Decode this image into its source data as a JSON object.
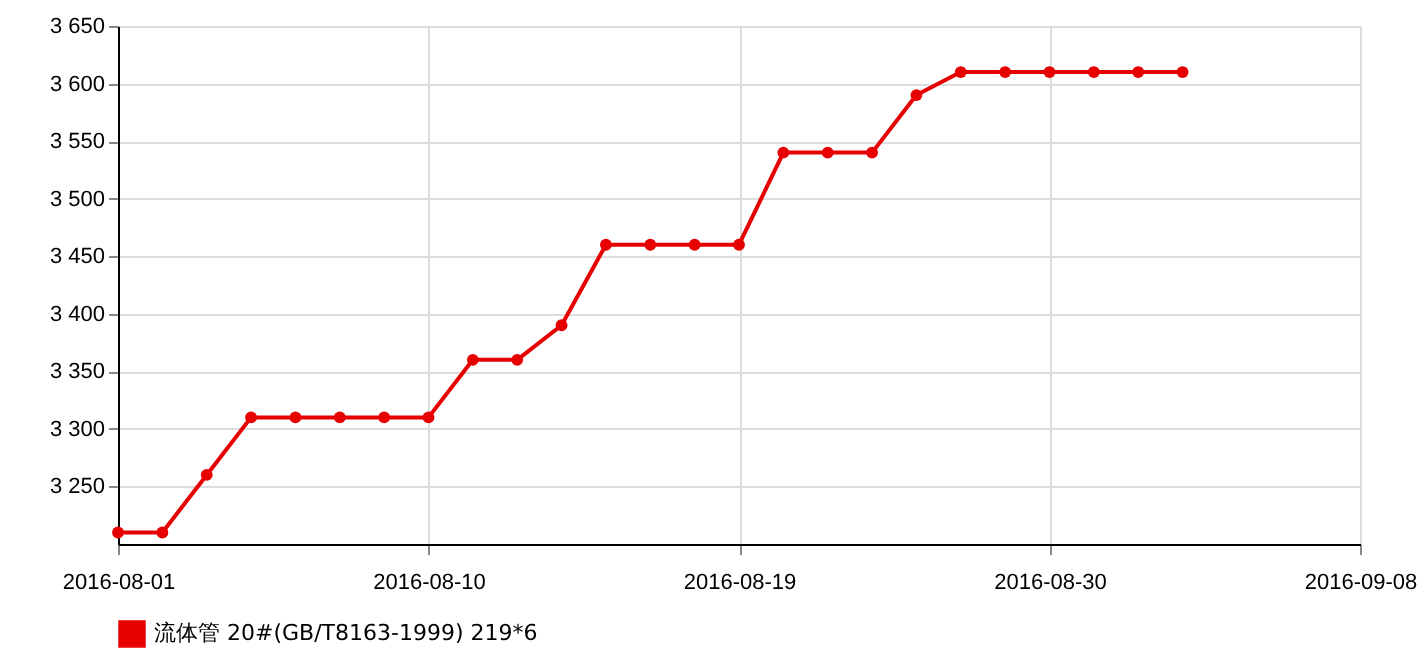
{
  "chart_data": {
    "type": "line",
    "categories": [
      "2016-08-01",
      null,
      null,
      null,
      null,
      null,
      null,
      "2016-08-10",
      null,
      null,
      null,
      null,
      null,
      null,
      "2016-08-19",
      null,
      null,
      null,
      null,
      null,
      null,
      "2016-08-30",
      null,
      null,
      null,
      null,
      null,
      null,
      "2016-09-08"
    ],
    "series": [
      {
        "name": "流体管 20#(GB/T8163-1999) 219*6",
        "color": "#e60000",
        "values": [
          3210,
          3210,
          3260,
          3310,
          3310,
          3310,
          3310,
          3310,
          3360,
          3360,
          3390,
          3460,
          3460,
          3460,
          3460,
          3540,
          3540,
          3540,
          3590,
          3610,
          3610,
          3610,
          3610,
          3610,
          3610,
          null,
          null,
          null,
          null
        ]
      }
    ],
    "ylim": [
      3200,
      3650
    ],
    "yticks": [
      {
        "value": 3250,
        "label": "3 250"
      },
      {
        "value": 3300,
        "label": "3 300"
      },
      {
        "value": 3350,
        "label": "3 350"
      },
      {
        "value": 3400,
        "label": "3 400"
      },
      {
        "value": 3450,
        "label": "3 450"
      },
      {
        "value": 3500,
        "label": "3 500"
      },
      {
        "value": 3550,
        "label": "3 550"
      },
      {
        "value": 3600,
        "label": "3 600"
      },
      {
        "value": 3650,
        "label": "3 650"
      }
    ],
    "grid": true,
    "legend": "bottom left",
    "marker": "circle",
    "line_style": "solid"
  }
}
